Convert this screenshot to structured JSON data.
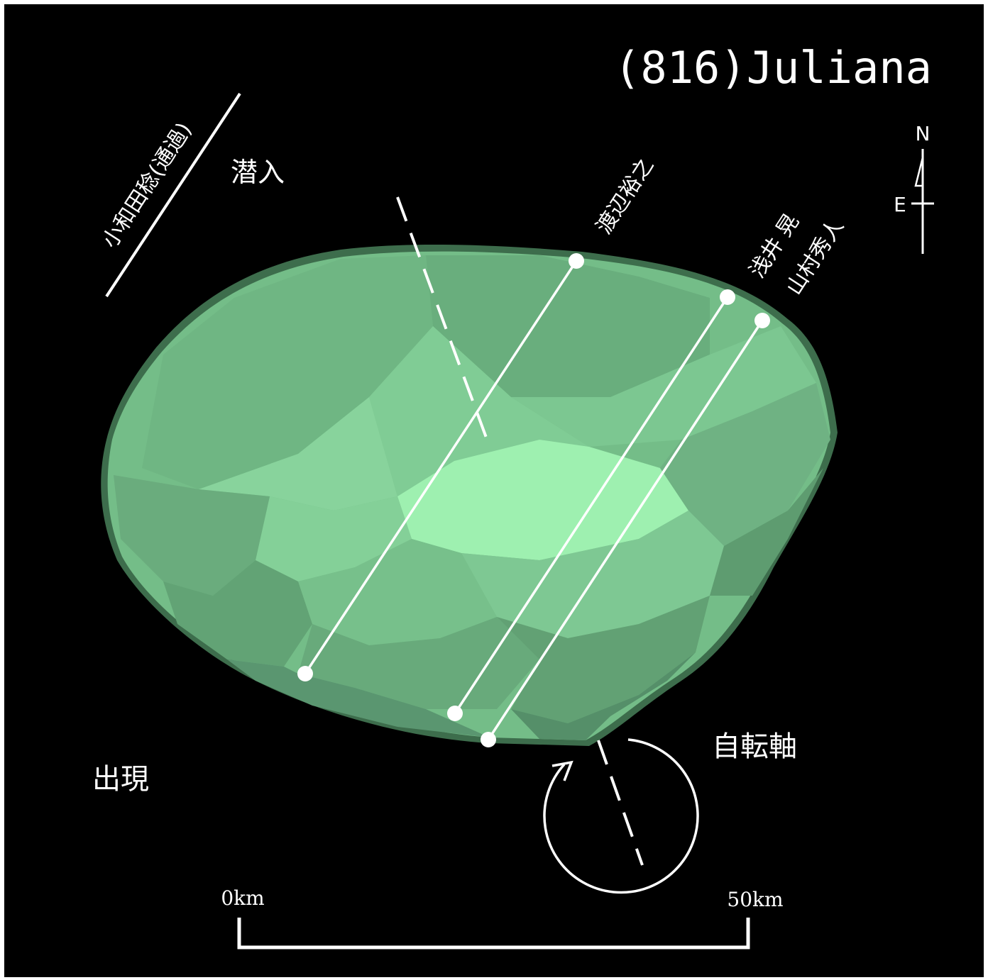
{
  "title": "(816)Juliana",
  "labels": {
    "ingress": "潜入",
    "egress": "出現",
    "rotation_axis": "自転軸"
  },
  "compass": {
    "north": "N",
    "east": "E"
  },
  "observers": {
    "miss": "小和田稔(通過)",
    "chord1": "渡辺裕之",
    "chord2": "浅井 晃",
    "chord3": "山村秀人"
  },
  "scale_bar": {
    "start_label": "0km",
    "end_label": "50km"
  },
  "colors": {
    "background": "#000000",
    "asteroid_base": "#74bd88",
    "asteroid_highlight": "#9ef0b0",
    "asteroid_shadow": "#4a8a60",
    "lines": "#ffffff"
  }
}
